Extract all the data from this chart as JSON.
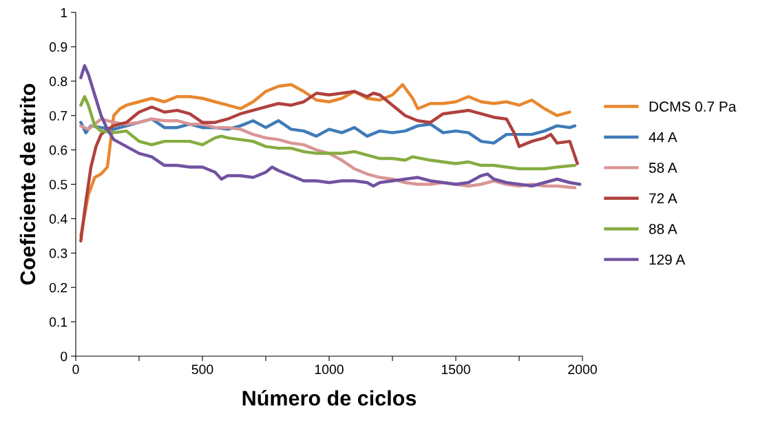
{
  "chart_data": {
    "type": "line",
    "xlabel": "Número de ciclos",
    "ylabel": "Coeficiente de atrito",
    "xlim": [
      0,
      2000
    ],
    "ylim": [
      0,
      1
    ],
    "xticks": [
      0,
      {
        "value": 250,
        "label": null
      },
      500,
      {
        "value": 750,
        "label": null
      },
      1000,
      {
        "value": 1250,
        "label": null
      },
      1500,
      {
        "value": 1750,
        "label": null
      },
      2000
    ],
    "yticks": [
      0,
      0.1,
      0.2,
      0.3,
      0.4,
      0.5,
      0.6,
      0.7,
      0.8,
      0.9,
      1
    ],
    "grid": false,
    "legend": "right",
    "marker": "none",
    "line_style": "solid",
    "series": [
      {
        "name": "DCMS 0.7 Pa",
        "color": "#e8872f",
        "x": [
          20,
          50,
          75,
          100,
          125,
          150,
          175,
          200,
          250,
          300,
          350,
          400,
          450,
          500,
          550,
          600,
          650,
          700,
          750,
          800,
          850,
          900,
          950,
          1000,
          1050,
          1100,
          1150,
          1200,
          1250,
          1290,
          1330,
          1350,
          1400,
          1450,
          1500,
          1550,
          1600,
          1650,
          1700,
          1750,
          1800,
          1850,
          1900,
          1950
        ],
        "values": [
          0.35,
          0.47,
          0.52,
          0.53,
          0.55,
          0.7,
          0.72,
          0.73,
          0.74,
          0.75,
          0.74,
          0.755,
          0.755,
          0.75,
          0.74,
          0.73,
          0.72,
          0.74,
          0.77,
          0.785,
          0.79,
          0.77,
          0.745,
          0.74,
          0.75,
          0.77,
          0.75,
          0.745,
          0.76,
          0.79,
          0.75,
          0.72,
          0.735,
          0.735,
          0.74,
          0.755,
          0.74,
          0.735,
          0.74,
          0.73,
          0.745,
          0.72,
          0.7,
          0.71
        ]
      },
      {
        "name": "44 A",
        "color": "#3f7bb8",
        "x": [
          20,
          40,
          60,
          100,
          150,
          200,
          250,
          300,
          350,
          400,
          450,
          500,
          550,
          600,
          650,
          700,
          750,
          800,
          850,
          900,
          950,
          1000,
          1050,
          1100,
          1150,
          1200,
          1250,
          1300,
          1350,
          1400,
          1450,
          1500,
          1550,
          1600,
          1650,
          1700,
          1750,
          1800,
          1850,
          1900,
          1950,
          1970
        ],
        "values": [
          0.68,
          0.65,
          0.67,
          0.665,
          0.66,
          0.67,
          0.68,
          0.69,
          0.665,
          0.665,
          0.675,
          0.665,
          0.665,
          0.66,
          0.67,
          0.685,
          0.665,
          0.685,
          0.66,
          0.655,
          0.64,
          0.66,
          0.65,
          0.665,
          0.64,
          0.655,
          0.65,
          0.655,
          0.67,
          0.675,
          0.65,
          0.655,
          0.65,
          0.625,
          0.62,
          0.645,
          0.645,
          0.645,
          0.655,
          0.67,
          0.665,
          0.67
        ]
      },
      {
        "name": "58 A",
        "color": "#d99594",
        "x": [
          20,
          50,
          100,
          150,
          200,
          250,
          300,
          350,
          400,
          450,
          500,
          550,
          600,
          650,
          700,
          750,
          800,
          850,
          900,
          950,
          1000,
          1050,
          1100,
          1150,
          1200,
          1250,
          1300,
          1350,
          1400,
          1450,
          1500,
          1550,
          1600,
          1650,
          1700,
          1750,
          1800,
          1850,
          1900,
          1970
        ],
        "values": [
          0.67,
          0.66,
          0.69,
          0.68,
          0.675,
          0.68,
          0.69,
          0.685,
          0.685,
          0.675,
          0.675,
          0.665,
          0.665,
          0.66,
          0.645,
          0.635,
          0.63,
          0.62,
          0.615,
          0.6,
          0.59,
          0.57,
          0.545,
          0.53,
          0.52,
          0.515,
          0.505,
          0.5,
          0.5,
          0.505,
          0.5,
          0.495,
          0.5,
          0.51,
          0.5,
          0.495,
          0.5,
          0.495,
          0.495,
          0.49
        ]
      },
      {
        "name": "72 A",
        "color": "#b0413e",
        "x": [
          20,
          40,
          60,
          80,
          100,
          125,
          150,
          200,
          250,
          300,
          350,
          400,
          450,
          500,
          550,
          600,
          650,
          700,
          750,
          800,
          850,
          900,
          950,
          1000,
          1050,
          1100,
          1150,
          1175,
          1200,
          1250,
          1300,
          1350,
          1400,
          1450,
          1500,
          1550,
          1600,
          1650,
          1700,
          1730,
          1750,
          1800,
          1850,
          1875,
          1900,
          1950,
          1980
        ],
        "values": [
          0.335,
          0.45,
          0.55,
          0.61,
          0.645,
          0.66,
          0.67,
          0.68,
          0.71,
          0.725,
          0.71,
          0.715,
          0.705,
          0.68,
          0.68,
          0.69,
          0.705,
          0.715,
          0.725,
          0.735,
          0.73,
          0.74,
          0.765,
          0.76,
          0.765,
          0.77,
          0.755,
          0.765,
          0.76,
          0.73,
          0.7,
          0.685,
          0.68,
          0.705,
          0.71,
          0.715,
          0.705,
          0.695,
          0.69,
          0.65,
          0.61,
          0.625,
          0.635,
          0.645,
          0.62,
          0.625,
          0.56
        ]
      },
      {
        "name": "88 A",
        "color": "#86ac41",
        "x": [
          20,
          35,
          50,
          75,
          100,
          150,
          200,
          250,
          300,
          350,
          400,
          450,
          500,
          550,
          575,
          600,
          650,
          700,
          750,
          800,
          850,
          900,
          950,
          1000,
          1050,
          1100,
          1150,
          1200,
          1250,
          1300,
          1330,
          1400,
          1450,
          1500,
          1550,
          1600,
          1650,
          1700,
          1750,
          1800,
          1850,
          1900,
          1970
        ],
        "values": [
          0.73,
          0.755,
          0.73,
          0.67,
          0.655,
          0.65,
          0.655,
          0.625,
          0.615,
          0.625,
          0.625,
          0.625,
          0.615,
          0.635,
          0.64,
          0.635,
          0.63,
          0.625,
          0.61,
          0.605,
          0.605,
          0.595,
          0.59,
          0.59,
          0.59,
          0.595,
          0.585,
          0.575,
          0.575,
          0.57,
          0.58,
          0.57,
          0.565,
          0.56,
          0.565,
          0.555,
          0.555,
          0.55,
          0.545,
          0.545,
          0.545,
          0.55,
          0.555
        ]
      },
      {
        "name": "129 A",
        "color": "#7052a0",
        "x": [
          20,
          35,
          50,
          75,
          100,
          125,
          150,
          200,
          250,
          300,
          350,
          400,
          450,
          500,
          550,
          575,
          600,
          650,
          700,
          750,
          775,
          800,
          850,
          900,
          950,
          1000,
          1050,
          1100,
          1150,
          1175,
          1200,
          1250,
          1300,
          1350,
          1400,
          1450,
          1500,
          1550,
          1600,
          1625,
          1650,
          1700,
          1750,
          1800,
          1850,
          1900,
          1950,
          1990
        ],
        "values": [
          0.81,
          0.845,
          0.82,
          0.76,
          0.7,
          0.66,
          0.63,
          0.61,
          0.59,
          0.58,
          0.555,
          0.555,
          0.55,
          0.55,
          0.535,
          0.515,
          0.525,
          0.525,
          0.52,
          0.535,
          0.55,
          0.54,
          0.525,
          0.51,
          0.51,
          0.505,
          0.51,
          0.51,
          0.505,
          0.495,
          0.505,
          0.51,
          0.515,
          0.52,
          0.51,
          0.505,
          0.5,
          0.505,
          0.525,
          0.53,
          0.515,
          0.505,
          0.5,
          0.495,
          0.505,
          0.515,
          0.505,
          0.5
        ]
      }
    ]
  }
}
